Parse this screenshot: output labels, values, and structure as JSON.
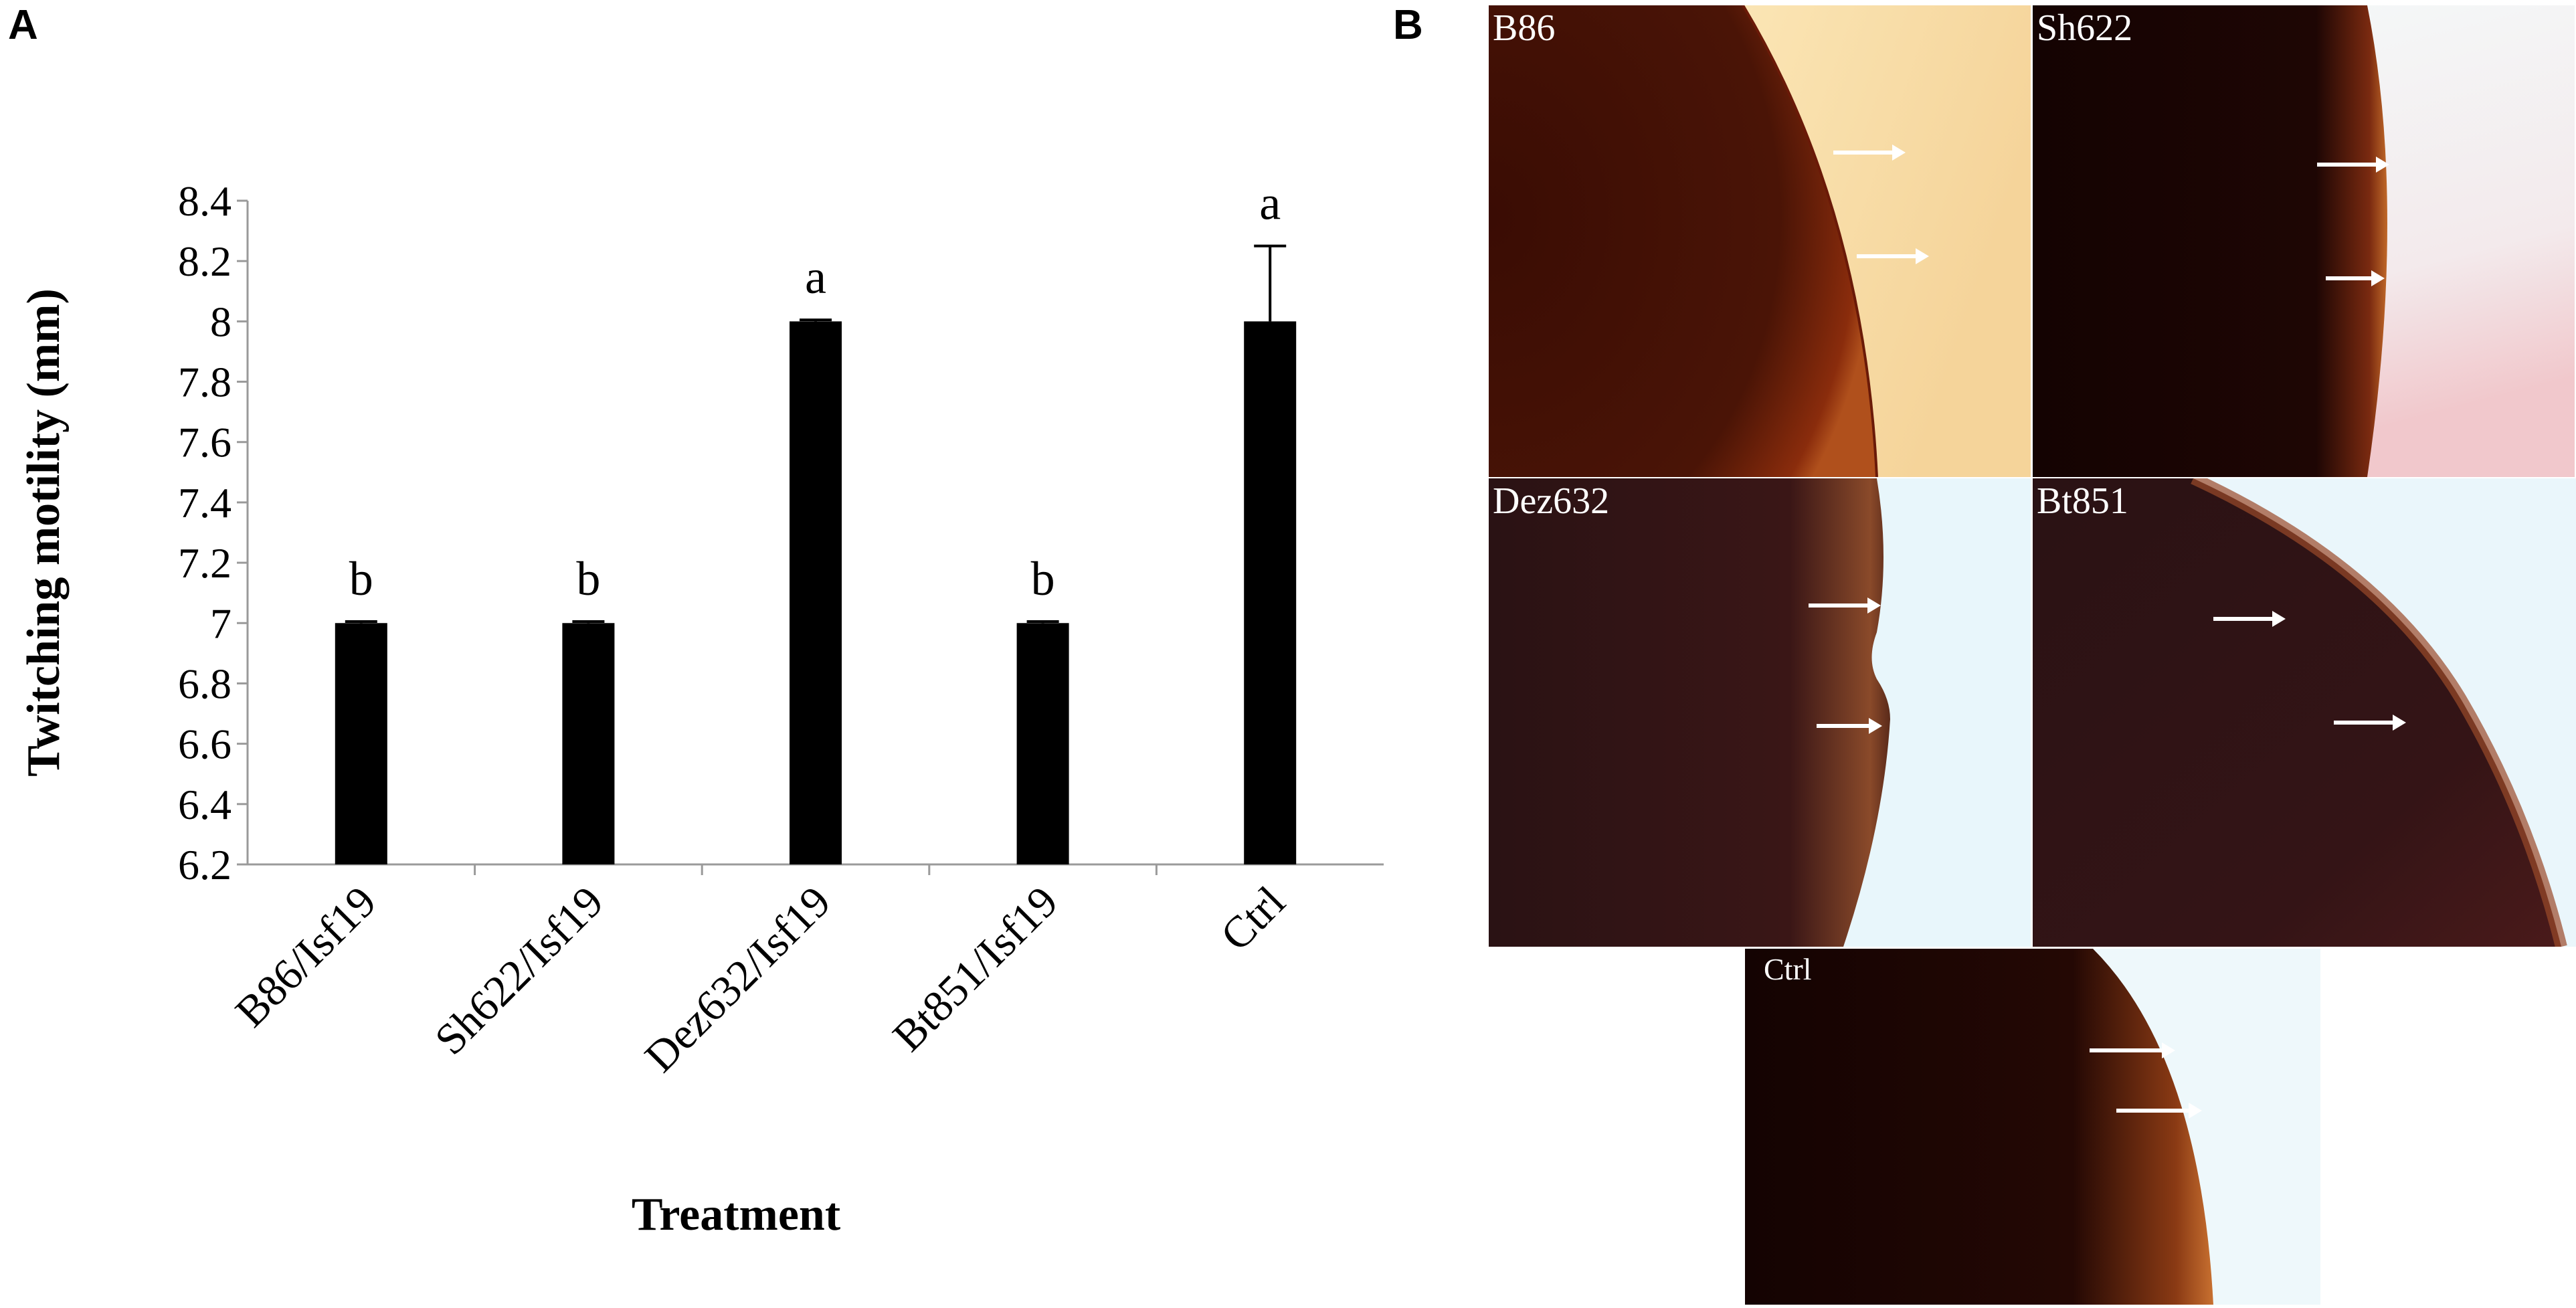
{
  "panel_a_label": "A",
  "panel_b_label": "B",
  "chart_data": {
    "type": "bar",
    "categories": [
      "B86/Isf19",
      "Sh622/Isf19",
      "Dez632/Isf19",
      "Bt851/Isf19",
      "Ctrl"
    ],
    "values": [
      7.0,
      7.0,
      8.0,
      7.0,
      8.0
    ],
    "errors": [
      0.005,
      0.005,
      0.005,
      0.005,
      0.25
    ],
    "significance_letters": [
      "b",
      "b",
      "a",
      "b",
      "a"
    ],
    "xlabel": "Treatment",
    "ylabel": "Twitching  motility  (mm)",
    "ylim": [
      6.2,
      8.4
    ],
    "yticks": [
      "6.2",
      "6.4",
      "6.6",
      "6.8",
      "7",
      "7.2",
      "7.4",
      "7.6",
      "7.8",
      "8",
      "8.2",
      "8.4"
    ],
    "bar_color": "#000000",
    "grid": false
  },
  "micrographs": {
    "b86": {
      "label": "B86"
    },
    "sh622": {
      "label": "Sh622"
    },
    "dez632": {
      "label": "Dez632"
    },
    "bt851": {
      "label": "Bt851"
    },
    "ctrl": {
      "label": "Ctrl"
    }
  }
}
